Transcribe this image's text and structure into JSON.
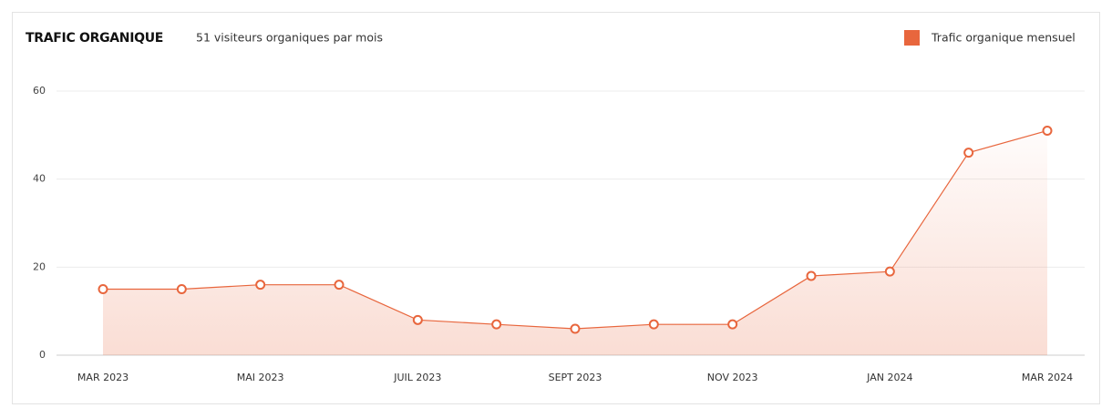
{
  "chart_data": {
    "type": "area-line",
    "title": "TRAFIC ORGANIQUE",
    "subtitle": "51 visiteurs organiques par mois",
    "categories": [
      "MAR 2023",
      null,
      "MAI 2023",
      null,
      "JUIL 2023",
      null,
      "SEPT 2023",
      null,
      "NOV 2023",
      null,
      "JAN 2024",
      null,
      "MAR 2024"
    ],
    "series": [
      {
        "name": "Trafic organique mensuel",
        "color": "#e8663d",
        "values": [
          15,
          15,
          16,
          16,
          8,
          7,
          6,
          7,
          7,
          18,
          19,
          46,
          51
        ]
      }
    ],
    "ylim": [
      0,
      60
    ],
    "yticks": [
      0,
      20,
      40,
      60
    ],
    "grid": true,
    "legend": "top-right"
  }
}
